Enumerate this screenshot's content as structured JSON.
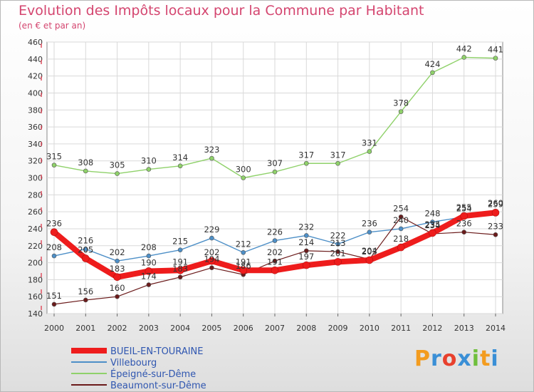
{
  "header": {
    "title": "Evolution des Impôts locaux pour la Commune par Habitant",
    "subtitle": "(en € et par an)"
  },
  "logo": {
    "text": "Proxiti"
  },
  "chart_data": {
    "type": "line",
    "x": [
      "2000",
      "2001",
      "2002",
      "2003",
      "2004",
      "2005",
      "2006",
      "2007",
      "2008",
      "2009",
      "2010",
      "2011",
      "2012",
      "2013",
      "2014"
    ],
    "ylim": [
      140,
      460
    ],
    "yticks": [
      140,
      160,
      180,
      200,
      220,
      240,
      260,
      280,
      300,
      320,
      340,
      360,
      380,
      400,
      420,
      440,
      460
    ],
    "grid": true,
    "legend_position": "bottom-left",
    "series": [
      {
        "name": "Épeigné-sur-Dême",
        "color": "#8fd16a",
        "width": 1.4,
        "values": [
          315,
          308,
          305,
          310,
          314,
          323,
          300,
          307,
          317,
          317,
          331,
          378,
          424,
          442,
          441
        ]
      },
      {
        "name": "Villebourg",
        "color": "#4d8fc7",
        "width": 1.4,
        "values": [
          208,
          216,
          202,
          208,
          215,
          229,
          212,
          226,
          232,
          222,
          236,
          240,
          248,
          254,
          260
        ]
      },
      {
        "name": "Beaumont-sur-Dême",
        "color": "#6b1b1b",
        "width": 1.2,
        "values": [
          151,
          156,
          160,
          174,
          183,
          194,
          186,
          202,
          214,
          213,
          204,
          254,
          234,
          236,
          233
        ]
      },
      {
        "name": "BUEIL-EN-TOURAINE",
        "color": "#ee1c1c",
        "width": 8,
        "values": [
          236,
          205,
          183,
          190,
          191,
          202,
          191,
          191,
          197,
          201,
          203,
          218,
          235,
          255,
          259
        ]
      }
    ],
    "data_labels": [
      [
        "315",
        "308",
        "305",
        "310",
        "314",
        "323",
        "300",
        "307",
        "317",
        "317",
        "331",
        "378",
        "424",
        "442",
        "441"
      ],
      [
        "208",
        "216",
        "202",
        "208",
        "215",
        "229",
        "212",
        "226",
        "232",
        "222",
        "236",
        "240",
        "248",
        "254",
        "260"
      ],
      [
        "151",
        "156",
        "160",
        "174",
        "183",
        "194",
        "186",
        "202",
        "214",
        "213",
        "204",
        "254",
        "234",
        "236",
        "233"
      ],
      [
        "236",
        "205",
        "183",
        "190",
        "191",
        "202",
        "191",
        "191",
        "197",
        "201",
        "203",
        "218",
        "235",
        "255",
        "259"
      ]
    ],
    "legend": [
      {
        "name": "BUEIL-EN-TOURAINE",
        "color": "#ee1c1c"
      },
      {
        "name": "Villebourg",
        "color": "#4d8fc7"
      },
      {
        "name": "Épeigné-sur-Dême",
        "color": "#8fd16a"
      },
      {
        "name": "Beaumont-sur-Dême",
        "color": "#6b1b1b"
      }
    ]
  }
}
